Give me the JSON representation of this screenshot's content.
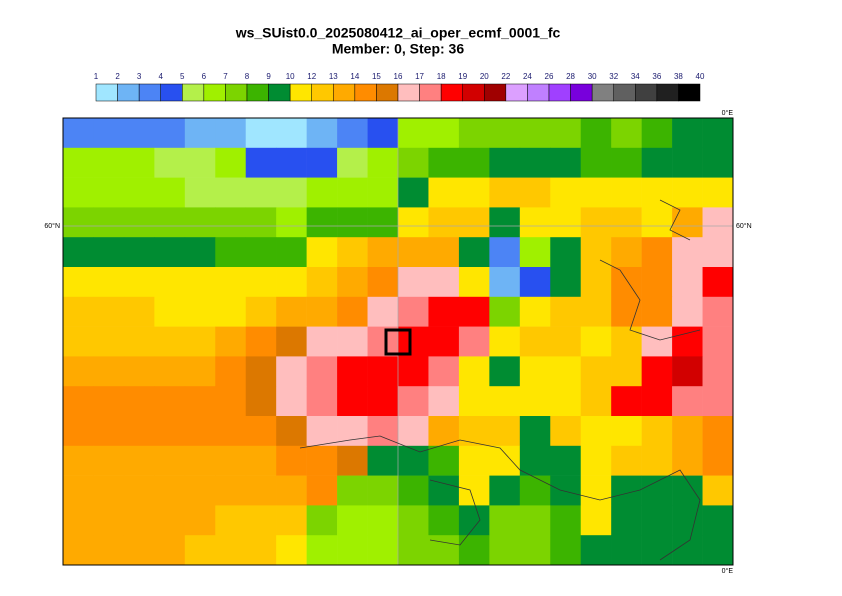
{
  "title": "ws_SUist0.0_2025080412_ai_oper_ecmf_0001_fc",
  "subtitle": "Member: 0, Step: 36",
  "colorbar": {
    "levels": [
      1,
      2,
      3,
      4,
      5,
      6,
      7,
      8,
      9,
      10,
      12,
      13,
      14,
      15,
      16,
      17,
      18,
      19,
      20,
      22,
      24,
      26,
      28,
      30,
      32,
      34,
      36,
      38,
      40
    ],
    "colors": [
      "#a0e6ff",
      "#6eb4f5",
      "#4c84f5",
      "#2850f0",
      "#b4f04a",
      "#a0f000",
      "#7cd400",
      "#3cb400",
      "#008c32",
      "#ffe600",
      "#ffc800",
      "#ffaa00",
      "#ff8c00",
      "#dc7800",
      "#ffbebe",
      "#ff8080",
      "#ff0000",
      "#d20000",
      "#a00000",
      "#dca0ff",
      "#c080ff",
      "#a040ff",
      "#7800dc",
      "#808080",
      "#606060",
      "#404040",
      "#202020",
      "#000000"
    ]
  },
  "field": {
    "values": [
      [
        3.5,
        3.5,
        3.5,
        3.0,
        2.5,
        2.0,
        1.5,
        1.5,
        2.5,
        3.0,
        4.5,
        6.5,
        6.5,
        7.5,
        7.5,
        7.5,
        7.5,
        8.5,
        7.5,
        8.5,
        9.5,
        9.5
      ],
      [
        6.5,
        6.5,
        6.5,
        5.5,
        5.5,
        6.5,
        4.5,
        4.5,
        4.5,
        5.5,
        6.5,
        7.5,
        8.5,
        8.5,
        9.5,
        9.5,
        9.5,
        8.5,
        8.5,
        9.5,
        9.5,
        9.5
      ],
      [
        6.5,
        6.5,
        6.5,
        6.5,
        5.5,
        5.5,
        5.5,
        5.5,
        6.5,
        6.5,
        6.5,
        9.5,
        11,
        11,
        12.5,
        12.5,
        11,
        11,
        11,
        11,
        11,
        11
      ],
      [
        7.5,
        7.5,
        7.5,
        7.5,
        7.5,
        7.5,
        7.5,
        6.5,
        8.5,
        8.5,
        8.5,
        11,
        12.5,
        12.5,
        9.5,
        11,
        11,
        12.5,
        12.5,
        11,
        13.5,
        16.5
      ],
      [
        9.5,
        9.5,
        9.5,
        9.5,
        9.5,
        8.5,
        8.5,
        8.5,
        11,
        12.5,
        13.5,
        13.5,
        13.5,
        9.5,
        3.5,
        6.5,
        9.5,
        12.5,
        13.5,
        14.5,
        16.5,
        16.5
      ],
      [
        11,
        11,
        11,
        11,
        11,
        11,
        11,
        11,
        12.5,
        13.5,
        14.5,
        16.5,
        16.5,
        11,
        2.5,
        4.5,
        9.5,
        12.5,
        14.5,
        14.5,
        16.5,
        18.5
      ],
      [
        12.5,
        12.5,
        12.5,
        11,
        11,
        11,
        12.5,
        13.5,
        13.5,
        14.5,
        16.5,
        17.5,
        18.5,
        18.5,
        7.5,
        11,
        12.5,
        12.5,
        14.5,
        14.5,
        16.5,
        17.5
      ],
      [
        12.5,
        12.5,
        12.5,
        12.5,
        12.5,
        13.5,
        14.5,
        15.5,
        16.5,
        16.5,
        17.5,
        18.5,
        18.5,
        17.5,
        11,
        12.5,
        12.5,
        11,
        12.5,
        16.5,
        18.5,
        17.5
      ],
      [
        13.5,
        13.5,
        13.5,
        13.5,
        13.5,
        14.5,
        15.5,
        16.5,
        17.5,
        18.5,
        18.5,
        18.5,
        17.5,
        11,
        9.5,
        11,
        11,
        12.5,
        12.5,
        18.5,
        19.5,
        17.5
      ],
      [
        14.5,
        14.5,
        14.5,
        14.5,
        14.5,
        14.5,
        15.5,
        16.5,
        17.5,
        18.5,
        18.5,
        17.5,
        16.5,
        11,
        11,
        11,
        11,
        12.5,
        18.5,
        18.5,
        17.5,
        17.5
      ],
      [
        14.5,
        14.5,
        14.5,
        14.5,
        14.5,
        14.5,
        14.5,
        15.5,
        16.5,
        16.5,
        17.5,
        16.5,
        13.5,
        12.5,
        12.5,
        9.5,
        12.5,
        11,
        11,
        12.5,
        13.5,
        14.5
      ],
      [
        13.5,
        13.5,
        13.5,
        13.5,
        13.5,
        13.5,
        13.5,
        14.5,
        14.5,
        15.5,
        9.5,
        9.5,
        8.5,
        11,
        11,
        9.5,
        9.5,
        11,
        12.5,
        12.5,
        13.5,
        14.5
      ],
      [
        13.5,
        13.5,
        13.5,
        13.5,
        13.5,
        13.5,
        13.5,
        13.5,
        14.5,
        7.5,
        7.5,
        8.5,
        9.5,
        11,
        9.5,
        8.5,
        9.5,
        11,
        9.5,
        9.5,
        9.5,
        12.5
      ],
      [
        13.5,
        13.5,
        13.5,
        13.5,
        13.5,
        12.5,
        12.5,
        12.5,
        7.5,
        6.5,
        6.5,
        7.5,
        8.5,
        9.5,
        7.5,
        7.5,
        8.5,
        11,
        9.5,
        9.5,
        9.5,
        9.5
      ],
      [
        13.5,
        13.5,
        13.5,
        13.5,
        12.5,
        12.5,
        12.5,
        11,
        6.5,
        6.5,
        6.5,
        7.5,
        7.5,
        8.5,
        7.5,
        7.5,
        8.5,
        9.5,
        9.5,
        9.5,
        9.5,
        9.5
      ]
    ]
  },
  "labels": {
    "lon_top": "0°E",
    "lon_bottom": "0°E",
    "lat_left": "60°N",
    "lat_right": "60°N"
  }
}
